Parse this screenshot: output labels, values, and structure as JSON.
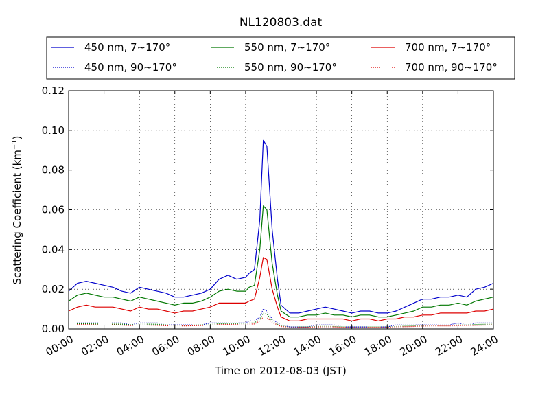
{
  "chart_data": {
    "type": "line",
    "title": "NL120803.dat",
    "xlabel": "Time on 2012-08-03 (JST)",
    "ylabel": "Scattering Coefficient (km",
    "ylabel_sup": "−1",
    "ylabel_end": ")",
    "xlim": [
      0,
      24
    ],
    "ylim": [
      0,
      0.12
    ],
    "grid": true,
    "legend_position": "top-outside",
    "x_ticks": [
      0,
      2,
      4,
      6,
      8,
      10,
      12,
      14,
      16,
      18,
      20,
      22,
      24
    ],
    "x_tick_labels": [
      "00:00",
      "02:00",
      "04:00",
      "06:00",
      "08:00",
      "10:00",
      "12:00",
      "14:00",
      "16:00",
      "18:00",
      "20:00",
      "22:00",
      "24:00"
    ],
    "y_ticks": [
      0,
      0.02,
      0.04,
      0.06,
      0.08,
      0.1,
      0.12
    ],
    "y_tick_labels": [
      "0.00",
      "0.02",
      "0.04",
      "0.06",
      "0.08",
      "0.10",
      "0.12"
    ],
    "x": [
      0,
      0.5,
      1,
      1.5,
      2,
      2.5,
      3,
      3.5,
      4,
      4.5,
      5,
      5.5,
      6,
      6.5,
      7,
      7.5,
      8,
      8.5,
      9,
      9.5,
      10,
      10.2,
      10.5,
      10.8,
      11,
      11.2,
      11.5,
      11.8,
      12,
      12.5,
      13,
      13.5,
      14,
      14.5,
      15,
      15.5,
      16,
      16.5,
      17,
      17.5,
      18,
      18.5,
      19,
      19.5,
      20,
      20.5,
      21,
      21.5,
      22,
      22.5,
      23,
      23.5,
      24
    ],
    "series": [
      {
        "name": "450 nm, 7∼170°",
        "color": "#0000cc",
        "style": "solid",
        "values": [
          0.019,
          0.023,
          0.024,
          0.023,
          0.022,
          0.021,
          0.019,
          0.018,
          0.021,
          0.02,
          0.019,
          0.018,
          0.016,
          0.016,
          0.017,
          0.018,
          0.02,
          0.025,
          0.027,
          0.025,
          0.026,
          0.028,
          0.03,
          0.055,
          0.095,
          0.092,
          0.05,
          0.025,
          0.012,
          0.008,
          0.008,
          0.009,
          0.01,
          0.011,
          0.01,
          0.009,
          0.008,
          0.009,
          0.009,
          0.008,
          0.008,
          0.009,
          0.011,
          0.013,
          0.015,
          0.015,
          0.016,
          0.016,
          0.017,
          0.016,
          0.02,
          0.021,
          0.023
        ]
      },
      {
        "name": "550 nm, 7∼170°",
        "color": "#007700",
        "style": "solid",
        "values": [
          0.014,
          0.017,
          0.018,
          0.017,
          0.016,
          0.016,
          0.015,
          0.014,
          0.016,
          0.015,
          0.014,
          0.013,
          0.012,
          0.013,
          0.013,
          0.014,
          0.016,
          0.019,
          0.02,
          0.019,
          0.019,
          0.021,
          0.022,
          0.04,
          0.062,
          0.06,
          0.033,
          0.017,
          0.009,
          0.006,
          0.006,
          0.007,
          0.007,
          0.008,
          0.007,
          0.007,
          0.006,
          0.007,
          0.007,
          0.006,
          0.006,
          0.007,
          0.008,
          0.009,
          0.011,
          0.011,
          0.012,
          0.012,
          0.013,
          0.012,
          0.014,
          0.015,
          0.016
        ]
      },
      {
        "name": "700 nm, 7∼170°",
        "color": "#dd0000",
        "style": "solid",
        "values": [
          0.009,
          0.011,
          0.012,
          0.011,
          0.011,
          0.011,
          0.01,
          0.009,
          0.011,
          0.01,
          0.01,
          0.009,
          0.008,
          0.009,
          0.009,
          0.01,
          0.011,
          0.013,
          0.013,
          0.013,
          0.013,
          0.014,
          0.015,
          0.026,
          0.036,
          0.035,
          0.02,
          0.011,
          0.006,
          0.004,
          0.004,
          0.005,
          0.005,
          0.005,
          0.005,
          0.005,
          0.004,
          0.005,
          0.005,
          0.004,
          0.005,
          0.005,
          0.006,
          0.006,
          0.007,
          0.007,
          0.008,
          0.008,
          0.008,
          0.008,
          0.009,
          0.009,
          0.01
        ]
      },
      {
        "name": "450 nm, 90∼170°",
        "color": "#0000cc",
        "style": "dotted",
        "values": [
          0.003,
          0.003,
          0.003,
          0.003,
          0.003,
          0.003,
          0.003,
          0.002,
          0.003,
          0.003,
          0.003,
          0.002,
          0.002,
          0.002,
          0.002,
          0.002,
          0.003,
          0.003,
          0.003,
          0.003,
          0.003,
          0.004,
          0.004,
          0.006,
          0.01,
          0.009,
          0.005,
          0.003,
          0.002,
          0.001,
          0.001,
          0.001,
          0.002,
          0.002,
          0.002,
          0.001,
          0.001,
          0.001,
          0.001,
          0.001,
          0.001,
          0.002,
          0.002,
          0.002,
          0.002,
          0.002,
          0.002,
          0.002,
          0.003,
          0.002,
          0.003,
          0.003,
          0.003
        ]
      },
      {
        "name": "550 nm, 90∼170°",
        "color": "#007700",
        "style": "dotted",
        "values": [
          0.0025,
          0.0026,
          0.0026,
          0.0025,
          0.0025,
          0.0024,
          0.0024,
          0.002,
          0.0025,
          0.0024,
          0.0023,
          0.002,
          0.0018,
          0.0018,
          0.0019,
          0.002,
          0.0023,
          0.0026,
          0.0027,
          0.0026,
          0.0026,
          0.003,
          0.003,
          0.005,
          0.008,
          0.0075,
          0.004,
          0.0024,
          0.0015,
          0.001,
          0.001,
          0.001,
          0.0012,
          0.0013,
          0.0012,
          0.001,
          0.001,
          0.001,
          0.001,
          0.001,
          0.001,
          0.0012,
          0.0014,
          0.0015,
          0.0017,
          0.0018,
          0.0018,
          0.0018,
          0.002,
          0.002,
          0.0022,
          0.0023,
          0.0024
        ]
      },
      {
        "name": "700 nm, 90∼170°",
        "color": "#dd0000",
        "style": "dotted",
        "values": [
          0.002,
          0.0021,
          0.0021,
          0.002,
          0.002,
          0.002,
          0.0019,
          0.0017,
          0.002,
          0.0019,
          0.0018,
          0.0016,
          0.0015,
          0.0015,
          0.0016,
          0.0017,
          0.0019,
          0.0021,
          0.0022,
          0.0021,
          0.0021,
          0.0024,
          0.0025,
          0.004,
          0.006,
          0.0058,
          0.0032,
          0.002,
          0.0012,
          0.0008,
          0.0008,
          0.0008,
          0.001,
          0.001,
          0.001,
          0.0008,
          0.0008,
          0.0008,
          0.0008,
          0.0008,
          0.0008,
          0.001,
          0.0011,
          0.0012,
          0.0014,
          0.0015,
          0.0015,
          0.0015,
          0.0016,
          0.0016,
          0.0018,
          0.0019,
          0.002
        ]
      }
    ],
    "legend_order": [
      0,
      1,
      2,
      3,
      4,
      5
    ]
  }
}
